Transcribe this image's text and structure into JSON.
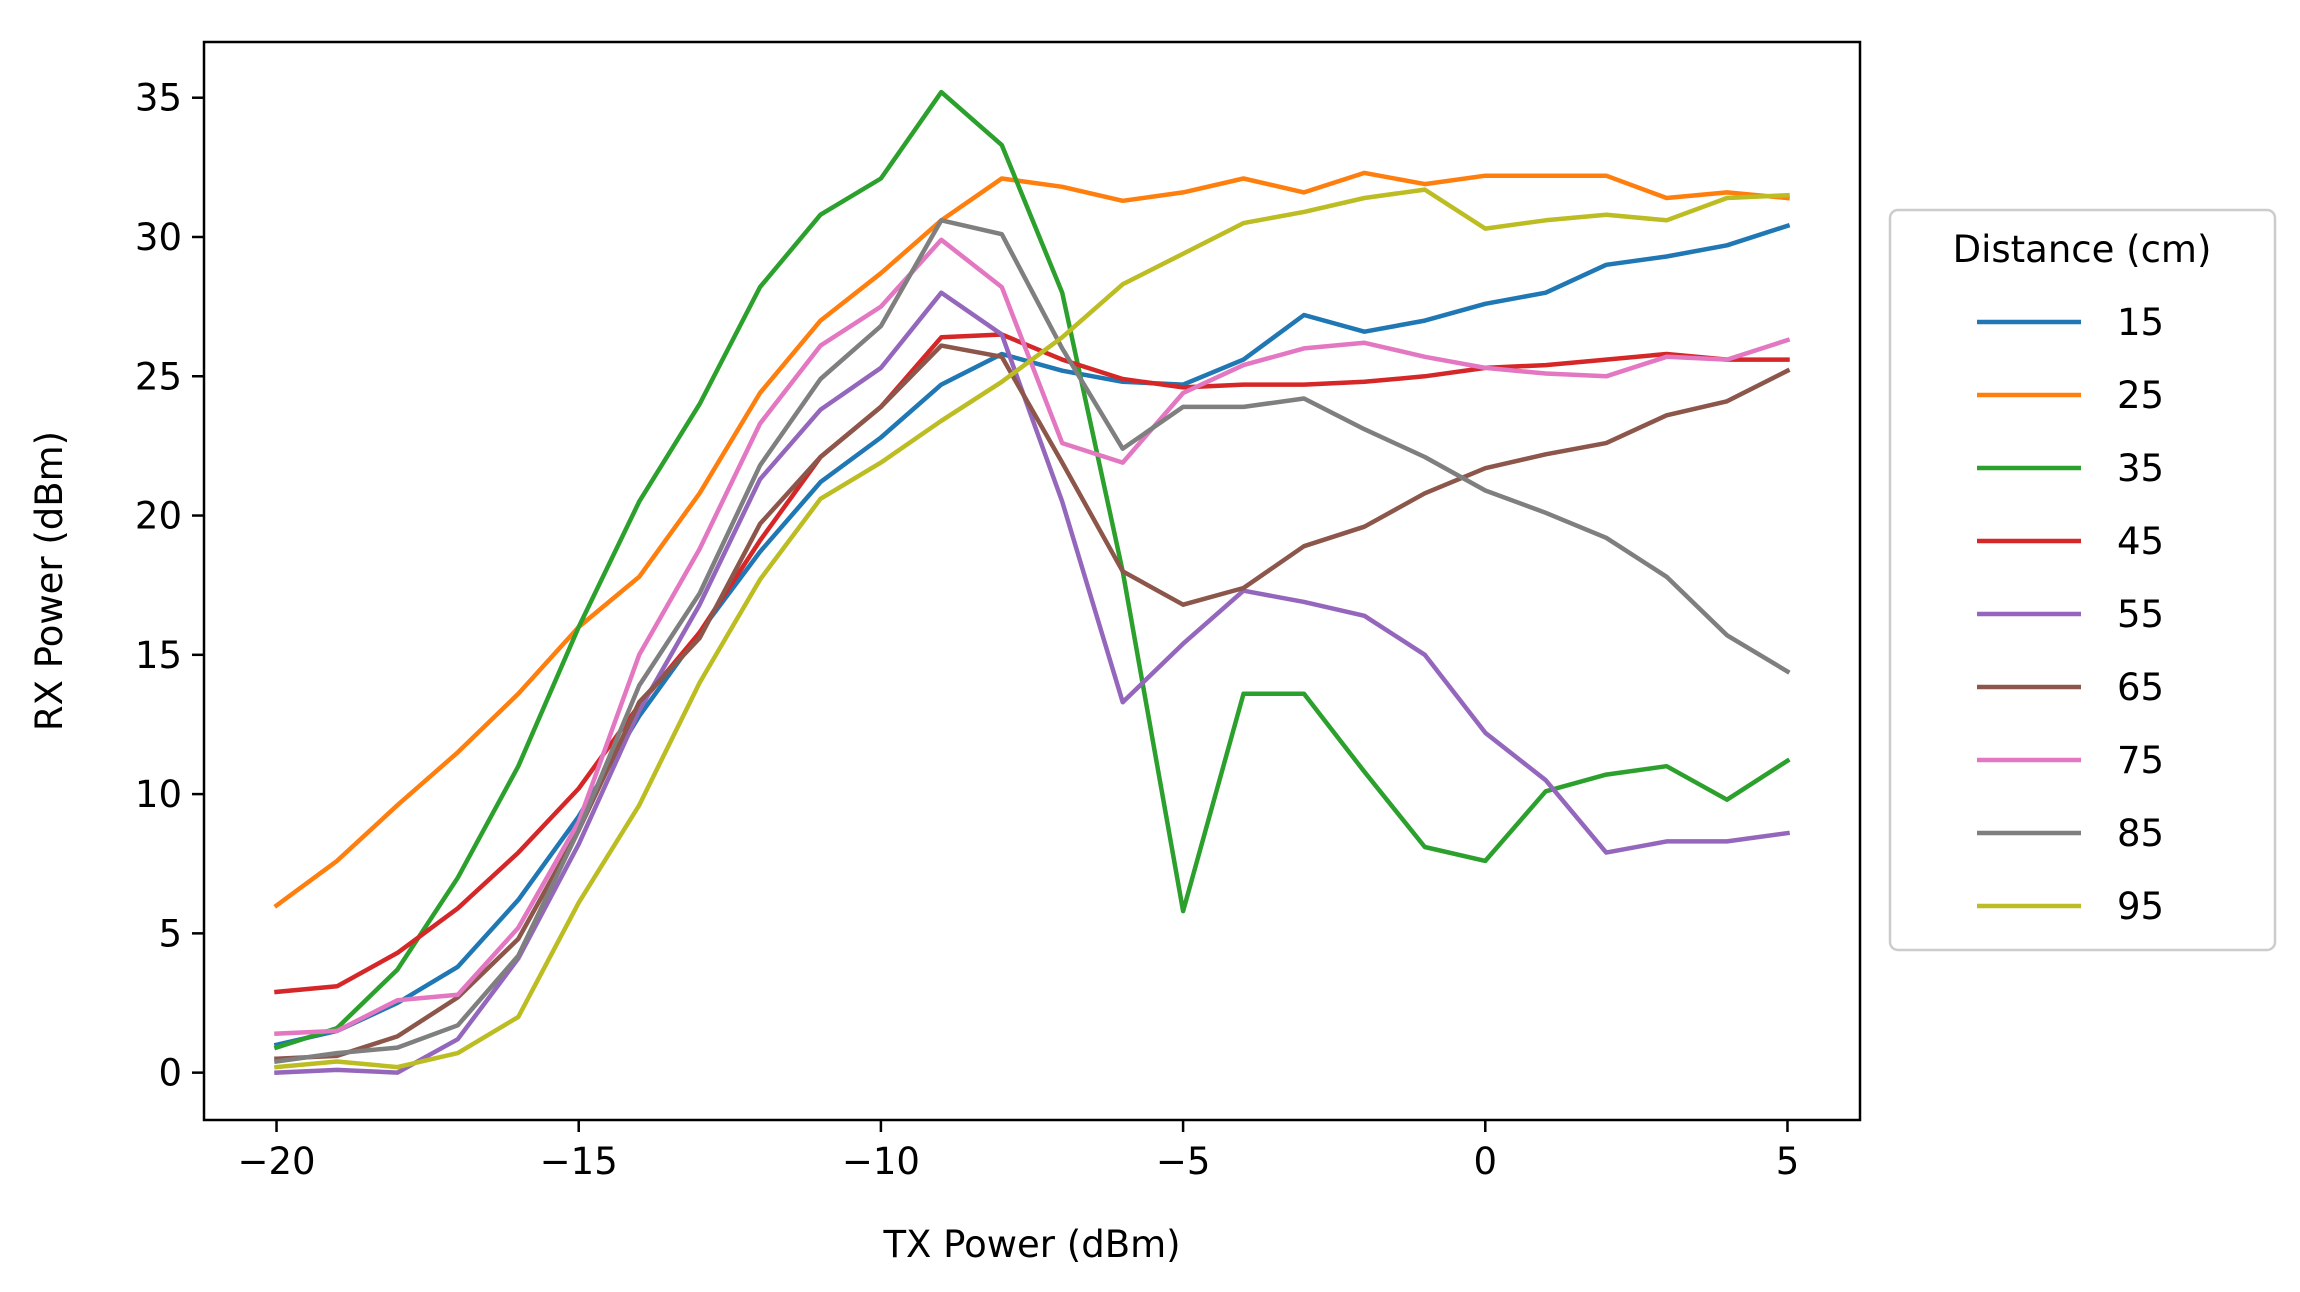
{
  "chart_data": {
    "type": "line",
    "title": "",
    "xlabel": "TX Power (dBm)",
    "ylabel": "RX Power (dBm)",
    "xlim": [
      -21.2,
      6.2
    ],
    "ylim": [
      -1.7,
      37.0
    ],
    "xticks": [
      -20,
      -15,
      -10,
      -5,
      0,
      5
    ],
    "xtick_labels": [
      "−20",
      "−15",
      "−10",
      "−5",
      "0",
      "5"
    ],
    "yticks": [
      0,
      5,
      10,
      15,
      20,
      25,
      30,
      35
    ],
    "ytick_labels": [
      "0",
      "5",
      "10",
      "15",
      "20",
      "25",
      "30",
      "35"
    ],
    "grid": false,
    "legend_title": "Distance (cm)",
    "legend_position": "right, outside",
    "x": [
      -20,
      -19,
      -18,
      -17,
      -16,
      -15,
      -14,
      -13,
      -12,
      -11,
      -10,
      -9,
      -8,
      -7,
      -6,
      -5,
      -4,
      -3,
      -2,
      -1,
      0,
      1,
      2,
      3,
      4,
      5
    ],
    "series": [
      {
        "name": "15",
        "color": "#1f77b4",
        "values": [
          1.0,
          1.5,
          2.5,
          3.8,
          6.2,
          9.2,
          12.8,
          15.8,
          18.7,
          21.2,
          22.8,
          24.7,
          25.8,
          25.2,
          24.8,
          24.7,
          25.6,
          27.2,
          26.6,
          27.0,
          27.6,
          28.0,
          29.0,
          29.3,
          29.7,
          30.4
        ]
      },
      {
        "name": "25",
        "color": "#ff7f0e",
        "values": [
          6.0,
          7.6,
          9.6,
          11.5,
          13.6,
          16.0,
          17.8,
          20.8,
          24.4,
          27.0,
          28.7,
          30.6,
          32.1,
          31.8,
          31.3,
          31.6,
          32.1,
          31.6,
          32.3,
          31.9,
          32.2,
          32.2,
          32.2,
          31.4,
          31.6,
          31.4
        ]
      },
      {
        "name": "35",
        "color": "#2ca02c",
        "values": [
          0.9,
          1.6,
          3.7,
          7.0,
          11.0,
          16.0,
          20.5,
          24.0,
          28.2,
          30.8,
          32.1,
          35.2,
          33.3,
          28.0,
          18.0,
          5.8,
          13.6,
          13.6,
          10.8,
          8.1,
          7.6,
          10.1,
          10.7,
          11.0,
          9.8,
          11.2
        ]
      },
      {
        "name": "45",
        "color": "#d62728",
        "values": [
          2.9,
          3.1,
          4.3,
          5.9,
          7.9,
          10.2,
          13.2,
          15.8,
          19.1,
          22.1,
          23.9,
          26.4,
          26.5,
          25.6,
          24.9,
          24.6,
          24.7,
          24.7,
          24.8,
          25.0,
          25.3,
          25.4,
          25.6,
          25.8,
          25.6,
          25.6
        ]
      },
      {
        "name": "55",
        "color": "#9467bd",
        "values": [
          0.0,
          0.1,
          0.0,
          1.2,
          4.1,
          8.2,
          13.0,
          16.8,
          21.3,
          23.8,
          25.3,
          28.0,
          26.5,
          20.5,
          13.3,
          15.4,
          17.3,
          16.9,
          16.4,
          15.0,
          12.2,
          10.5,
          7.9,
          8.3,
          8.3,
          8.6
        ]
      },
      {
        "name": "65",
        "color": "#8c564b",
        "values": [
          0.5,
          0.6,
          1.3,
          2.7,
          4.8,
          8.7,
          13.3,
          15.6,
          19.7,
          22.1,
          23.9,
          26.1,
          25.7,
          21.9,
          18.0,
          16.8,
          17.4,
          18.9,
          19.6,
          20.8,
          21.7,
          22.2,
          22.6,
          23.6,
          24.1,
          25.2
        ]
      },
      {
        "name": "75",
        "color": "#e377c2",
        "values": [
          1.4,
          1.5,
          2.6,
          2.8,
          5.2,
          9.0,
          15.0,
          18.8,
          23.3,
          26.1,
          27.5,
          29.9,
          28.2,
          22.6,
          21.9,
          24.4,
          25.4,
          26.0,
          26.2,
          25.7,
          25.3,
          25.1,
          25.0,
          25.7,
          25.6,
          26.3
        ]
      },
      {
        "name": "85",
        "color": "#7f7f7f",
        "values": [
          0.4,
          0.7,
          0.9,
          1.7,
          4.2,
          8.7,
          13.9,
          17.2,
          21.8,
          24.9,
          26.8,
          30.6,
          30.1,
          26.0,
          22.4,
          23.9,
          23.9,
          24.2,
          23.1,
          22.1,
          20.9,
          20.1,
          19.2,
          17.8,
          15.7,
          14.4
        ]
      },
      {
        "name": "95",
        "color": "#bcbd22",
        "values": [
          0.2,
          0.4,
          0.2,
          0.7,
          2.0,
          6.1,
          9.6,
          14.0,
          17.7,
          20.6,
          21.9,
          23.4,
          24.8,
          26.4,
          28.3,
          29.4,
          30.5,
          30.9,
          31.4,
          31.7,
          30.3,
          30.6,
          30.8,
          30.6,
          31.4,
          31.5
        ]
      }
    ]
  }
}
